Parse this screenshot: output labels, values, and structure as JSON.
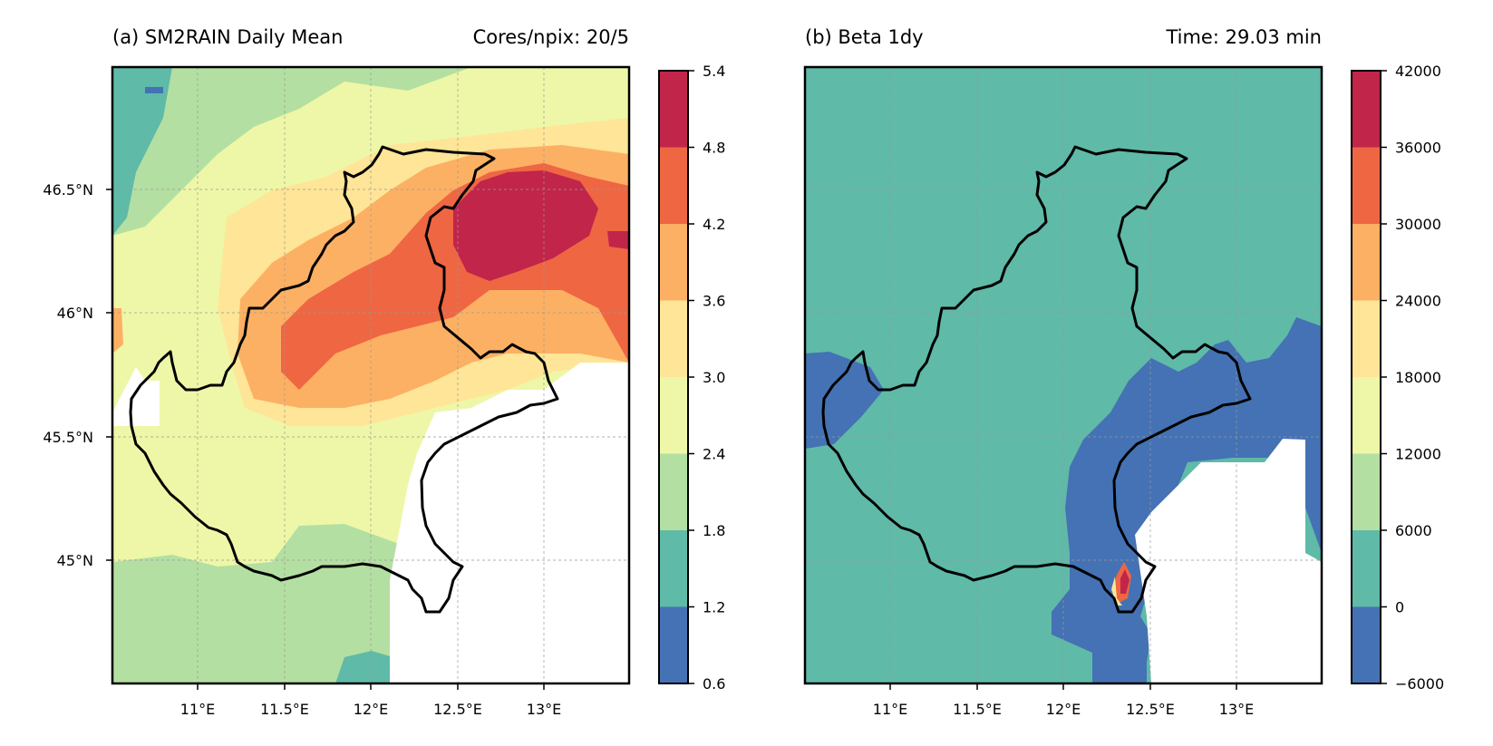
{
  "figure": {
    "panels": [
      {
        "title_left": "(a) SM2RAIN Daily Mean",
        "title_right": "Cores/npix: 20/5",
        "colorbar_ticks": [
          "0.6",
          "1.2",
          "1.8",
          "2.4",
          "3.0",
          "3.6",
          "4.2",
          "4.8",
          "5.4"
        ],
        "x_ticks": [
          "11°E",
          "11.5°E",
          "12°E",
          "12.5°E",
          "13°E"
        ],
        "y_ticks": [
          "45°N",
          "45.5°N",
          "46°N",
          "46.5°N"
        ]
      },
      {
        "title_left": "(b) Beta 1dy",
        "title_right": "Time: 29.03 min",
        "colorbar_ticks": [
          "−6000",
          "0",
          "6000",
          "12000",
          "18000",
          "24000",
          "30000",
          "36000",
          "42000"
        ],
        "x_ticks": [
          "11°E",
          "11.5°E",
          "12°E",
          "12.5°E",
          "13°E"
        ],
        "y_ticks": []
      }
    ],
    "colormap": [
      "#4472b4",
      "#5fbaa8",
      "#b4dfa2",
      "#eef7a7",
      "#fee597",
      "#fcb064",
      "#ef6643",
      "#c1254a"
    ],
    "colors": {
      "land_mask": "#ffffff",
      "border": "#000000",
      "grid": "#999999"
    }
  }
}
